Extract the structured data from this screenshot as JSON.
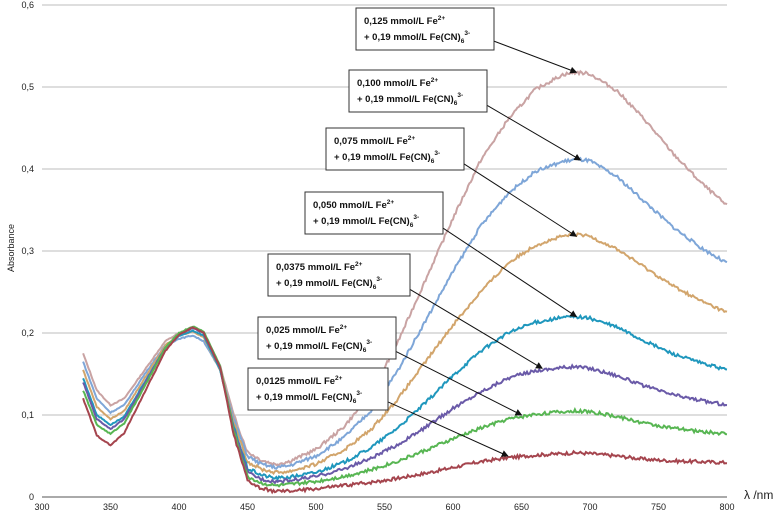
{
  "chart_data": {
    "type": "line",
    "title": "",
    "xlabel": "λ /nm",
    "ylabel": "Absorbance",
    "xlim": [
      300,
      800
    ],
    "ylim": [
      0,
      0.6
    ],
    "x_ticks": [
      "300",
      "350",
      "400",
      "450",
      "500",
      "550",
      "600",
      "650",
      "700",
      "750",
      "800"
    ],
    "y_ticks": [
      "0",
      "0,1",
      "0,2",
      "0,3",
      "0,4",
      "0,5",
      "0,6"
    ],
    "grid": "horizontal",
    "legend": "none",
    "series": [
      {
        "name_line1": "0,125 mmol/L Fe",
        "name_sup1": "2+",
        "name_line2": "+ 0,19 mmol/L Fe(CN)",
        "name_sub2": "6",
        "name_sup2": "3-",
        "color": "#c9a3a3",
        "points": [
          [
            330,
            0.175
          ],
          [
            340,
            0.13
          ],
          [
            350,
            0.112
          ],
          [
            360,
            0.12
          ],
          [
            375,
            0.155
          ],
          [
            390,
            0.19
          ],
          [
            400,
            0.2
          ],
          [
            410,
            0.202
          ],
          [
            418,
            0.195
          ],
          [
            430,
            0.16
          ],
          [
            440,
            0.1
          ],
          [
            450,
            0.055
          ],
          [
            460,
            0.045
          ],
          [
            470,
            0.04
          ],
          [
            480,
            0.043
          ],
          [
            500,
            0.058
          ],
          [
            520,
            0.085
          ],
          [
            540,
            0.125
          ],
          [
            560,
            0.19
          ],
          [
            580,
            0.265
          ],
          [
            600,
            0.34
          ],
          [
            620,
            0.41
          ],
          [
            640,
            0.46
          ],
          [
            660,
            0.497
          ],
          [
            680,
            0.515
          ],
          [
            690,
            0.518
          ],
          [
            700,
            0.516
          ],
          [
            720,
            0.495
          ],
          [
            740,
            0.46
          ],
          [
            760,
            0.42
          ],
          [
            780,
            0.385
          ],
          [
            800,
            0.355
          ]
        ]
      },
      {
        "name_line1": "0,100 mmol/L Fe",
        "name_sup1": "2+",
        "name_line2": "+ 0,19 mmol/L Fe(CN)",
        "name_sub2": "6",
        "name_sup2": "3-",
        "color": "#7ea6d8",
        "points": [
          [
            330,
            0.165
          ],
          [
            340,
            0.12
          ],
          [
            350,
            0.103
          ],
          [
            360,
            0.112
          ],
          [
            375,
            0.15
          ],
          [
            390,
            0.185
          ],
          [
            400,
            0.193
          ],
          [
            410,
            0.197
          ],
          [
            418,
            0.19
          ],
          [
            430,
            0.155
          ],
          [
            440,
            0.095
          ],
          [
            450,
            0.05
          ],
          [
            460,
            0.04
          ],
          [
            470,
            0.036
          ],
          [
            480,
            0.038
          ],
          [
            500,
            0.05
          ],
          [
            520,
            0.072
          ],
          [
            540,
            0.105
          ],
          [
            560,
            0.155
          ],
          [
            580,
            0.215
          ],
          [
            600,
            0.275
          ],
          [
            620,
            0.33
          ],
          [
            640,
            0.37
          ],
          [
            660,
            0.397
          ],
          [
            680,
            0.409
          ],
          [
            690,
            0.412
          ],
          [
            700,
            0.41
          ],
          [
            720,
            0.39
          ],
          [
            740,
            0.36
          ],
          [
            760,
            0.33
          ],
          [
            780,
            0.305
          ],
          [
            800,
            0.285
          ]
        ]
      },
      {
        "name_line1": "0,075 mmol/L Fe",
        "name_sup1": "2+",
        "name_line2": "+ 0,19 mmol/L Fe(CN)",
        "name_sub2": "6",
        "name_sup2": "3-",
        "color": "#d2a56c",
        "points": [
          [
            330,
            0.155
          ],
          [
            340,
            0.11
          ],
          [
            350,
            0.095
          ],
          [
            360,
            0.105
          ],
          [
            375,
            0.145
          ],
          [
            390,
            0.185
          ],
          [
            400,
            0.197
          ],
          [
            410,
            0.202
          ],
          [
            418,
            0.195
          ],
          [
            430,
            0.155
          ],
          [
            440,
            0.09
          ],
          [
            450,
            0.043
          ],
          [
            460,
            0.034
          ],
          [
            470,
            0.03
          ],
          [
            480,
            0.031
          ],
          [
            500,
            0.04
          ],
          [
            520,
            0.057
          ],
          [
            540,
            0.082
          ],
          [
            560,
            0.12
          ],
          [
            580,
            0.165
          ],
          [
            600,
            0.21
          ],
          [
            620,
            0.25
          ],
          [
            640,
            0.285
          ],
          [
            660,
            0.307
          ],
          [
            680,
            0.318
          ],
          [
            690,
            0.32
          ],
          [
            700,
            0.318
          ],
          [
            720,
            0.302
          ],
          [
            740,
            0.28
          ],
          [
            760,
            0.258
          ],
          [
            780,
            0.24
          ],
          [
            800,
            0.225
          ]
        ]
      },
      {
        "name_line1": "0,050 mmol/L Fe",
        "name_sup1": "2+",
        "name_line2": "+ 0,19 mmol/L Fe(CN)",
        "name_sub2": "6",
        "name_sup2": "3-",
        "color": "#1f97bd",
        "points": [
          [
            330,
            0.145
          ],
          [
            340,
            0.1
          ],
          [
            350,
            0.088
          ],
          [
            360,
            0.098
          ],
          [
            375,
            0.14
          ],
          [
            390,
            0.182
          ],
          [
            400,
            0.196
          ],
          [
            410,
            0.203
          ],
          [
            418,
            0.197
          ],
          [
            430,
            0.155
          ],
          [
            440,
            0.085
          ],
          [
            450,
            0.035
          ],
          [
            460,
            0.027
          ],
          [
            470,
            0.023
          ],
          [
            480,
            0.024
          ],
          [
            500,
            0.03
          ],
          [
            520,
            0.042
          ],
          [
            540,
            0.06
          ],
          [
            560,
            0.085
          ],
          [
            580,
            0.115
          ],
          [
            600,
            0.148
          ],
          [
            620,
            0.178
          ],
          [
            640,
            0.2
          ],
          [
            660,
            0.213
          ],
          [
            680,
            0.219
          ],
          [
            690,
            0.22
          ],
          [
            700,
            0.218
          ],
          [
            720,
            0.207
          ],
          [
            740,
            0.19
          ],
          [
            760,
            0.175
          ],
          [
            780,
            0.164
          ],
          [
            800,
            0.155
          ]
        ]
      },
      {
        "name_line1": "0,0375 mmol/L Fe",
        "name_sup1": "2+",
        "name_line2": "+ 0,19 mmol/L Fe(CN)",
        "name_sub2": "6",
        "name_sup2": "3-",
        "color": "#6a5aa8",
        "points": [
          [
            330,
            0.14
          ],
          [
            340,
            0.095
          ],
          [
            350,
            0.083
          ],
          [
            360,
            0.095
          ],
          [
            375,
            0.138
          ],
          [
            390,
            0.182
          ],
          [
            400,
            0.198
          ],
          [
            410,
            0.206
          ],
          [
            418,
            0.2
          ],
          [
            430,
            0.158
          ],
          [
            440,
            0.082
          ],
          [
            450,
            0.03
          ],
          [
            460,
            0.022
          ],
          [
            470,
            0.019
          ],
          [
            480,
            0.02
          ],
          [
            500,
            0.025
          ],
          [
            520,
            0.034
          ],
          [
            540,
            0.047
          ],
          [
            560,
            0.064
          ],
          [
            580,
            0.085
          ],
          [
            600,
            0.108
          ],
          [
            620,
            0.128
          ],
          [
            640,
            0.145
          ],
          [
            660,
            0.154
          ],
          [
            680,
            0.158
          ],
          [
            690,
            0.159
          ],
          [
            700,
            0.157
          ],
          [
            720,
            0.148
          ],
          [
            740,
            0.135
          ],
          [
            760,
            0.125
          ],
          [
            780,
            0.118
          ],
          [
            800,
            0.112
          ]
        ]
      },
      {
        "name_line1": "0,025 mmol/L Fe",
        "name_sup1": "2+",
        "name_line2": "+ 0,19 mmol/L Fe(CN)",
        "name_sub2": "6",
        "name_sup2": "3-",
        "color": "#58b653",
        "points": [
          [
            330,
            0.13
          ],
          [
            340,
            0.088
          ],
          [
            350,
            0.077
          ],
          [
            360,
            0.09
          ],
          [
            375,
            0.135
          ],
          [
            390,
            0.182
          ],
          [
            400,
            0.2
          ],
          [
            410,
            0.208
          ],
          [
            418,
            0.202
          ],
          [
            430,
            0.16
          ],
          [
            440,
            0.08
          ],
          [
            450,
            0.025
          ],
          [
            460,
            0.017
          ],
          [
            470,
            0.014
          ],
          [
            480,
            0.015
          ],
          [
            500,
            0.019
          ],
          [
            520,
            0.025
          ],
          [
            540,
            0.033
          ],
          [
            560,
            0.044
          ],
          [
            580,
            0.057
          ],
          [
            600,
            0.071
          ],
          [
            620,
            0.084
          ],
          [
            640,
            0.095
          ],
          [
            660,
            0.101
          ],
          [
            680,
            0.104
          ],
          [
            690,
            0.105
          ],
          [
            700,
            0.104
          ],
          [
            720,
            0.098
          ],
          [
            740,
            0.09
          ],
          [
            760,
            0.084
          ],
          [
            780,
            0.08
          ],
          [
            800,
            0.077
          ]
        ]
      },
      {
        "name_line1": "0,0125 mmol/L Fe",
        "name_sup1": "2+",
        "name_line2": "+ 0,19 mmol/L Fe(CN)",
        "name_sub2": "6",
        "name_sup2": "3-",
        "color": "#a5454e",
        "points": [
          [
            330,
            0.12
          ],
          [
            340,
            0.075
          ],
          [
            350,
            0.063
          ],
          [
            360,
            0.078
          ],
          [
            375,
            0.128
          ],
          [
            390,
            0.178
          ],
          [
            400,
            0.198
          ],
          [
            410,
            0.207
          ],
          [
            418,
            0.2
          ],
          [
            430,
            0.158
          ],
          [
            440,
            0.075
          ],
          [
            450,
            0.02
          ],
          [
            460,
            0.01
          ],
          [
            470,
            0.007
          ],
          [
            480,
            0.007
          ],
          [
            500,
            0.01
          ],
          [
            520,
            0.014
          ],
          [
            540,
            0.018
          ],
          [
            560,
            0.023
          ],
          [
            580,
            0.029
          ],
          [
            600,
            0.036
          ],
          [
            620,
            0.043
          ],
          [
            640,
            0.048
          ],
          [
            660,
            0.051
          ],
          [
            680,
            0.053
          ],
          [
            690,
            0.054
          ],
          [
            700,
            0.053
          ],
          [
            720,
            0.05
          ],
          [
            740,
            0.046
          ],
          [
            760,
            0.044
          ],
          [
            780,
            0.043
          ],
          [
            800,
            0.042
          ]
        ]
      }
    ],
    "annotations": [
      {
        "series": 0,
        "target": [
          690,
          0.518
        ]
      },
      {
        "series": 1,
        "target": [
          693,
          0.411
        ]
      },
      {
        "series": 2,
        "target": [
          690,
          0.318
        ]
      },
      {
        "series": 3,
        "target": [
          690,
          0.22
        ]
      },
      {
        "series": 4,
        "target": [
          665,
          0.157
        ]
      },
      {
        "series": 5,
        "target": [
          650,
          0.1
        ]
      },
      {
        "series": 6,
        "target": [
          640,
          0.05
        ]
      }
    ]
  }
}
